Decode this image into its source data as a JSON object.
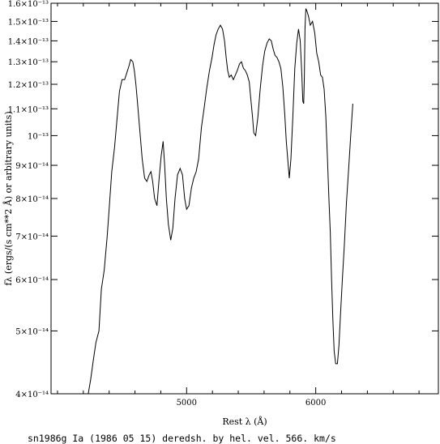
{
  "chart_data": {
    "type": "line",
    "title": "",
    "xlabel": "Rest λ (Å)",
    "ylabel": "fλ (ergs/(s cm**2 Å) or arbitrary units)",
    "caption": "sn1986g Ia (1986 05 15) deredsh. by hel. vel.   566. km/s",
    "xlim": [
      3950,
      6950
    ],
    "ylim": [
      4e-14,
      1.6e-13
    ],
    "yscale": "log",
    "grid": false,
    "x_ticks": [
      5000,
      6000
    ],
    "y_ticks": [
      {
        "value": 4e-14,
        "label": "4×10⁻¹⁴"
      },
      {
        "value": 5e-14,
        "label": "5×10⁻¹⁴"
      },
      {
        "value": 6e-14,
        "label": "6×10⁻¹⁴"
      },
      {
        "value": 7e-14,
        "label": "7×10⁻¹⁴"
      },
      {
        "value": 8e-14,
        "label": "8×10⁻¹⁴"
      },
      {
        "value": 9e-14,
        "label": "9×10⁻¹⁴"
      },
      {
        "value": 1e-13,
        "label": "10⁻¹³"
      },
      {
        "value": 1.1e-13,
        "label": "1.1×10⁻¹³"
      },
      {
        "value": 1.2e-13,
        "label": "1.2×10⁻¹³"
      },
      {
        "value": 1.3e-13,
        "label": "1.3×10⁻¹³"
      },
      {
        "value": 1.4e-13,
        "label": "1.4×10⁻¹³"
      },
      {
        "value": 1.5e-13,
        "label": "1.5×10⁻¹³"
      },
      {
        "value": 1.6e-13,
        "label": "1.6×10⁻¹³"
      }
    ],
    "series": [
      {
        "x": [
          4238,
          4256,
          4277,
          4298,
          4321,
          4340,
          4362,
          4385,
          4402,
          4420,
          4442,
          4461,
          4480,
          4500,
          4520,
          4537,
          4553,
          4567,
          4583,
          4595,
          4607,
          4620,
          4637,
          4656,
          4675,
          4692,
          4710,
          4724,
          4737,
          4752,
          4770,
          4787,
          4803,
          4818,
          4830,
          4843,
          4859,
          4877,
          4893,
          4910,
          4930,
          4950,
          4968,
          4985,
          5000,
          5018,
          5037,
          5055,
          5074,
          5093,
          5115,
          5135,
          5155,
          5177,
          5197,
          5212,
          5228,
          5245,
          5262,
          5278,
          5294,
          5306,
          5318,
          5331,
          5345,
          5362,
          5378,
          5392,
          5410,
          5425,
          5440,
          5455,
          5470,
          5485,
          5497,
          5510,
          5520,
          5535,
          5552,
          5570,
          5588,
          5605,
          5623,
          5640,
          5656,
          5670,
          5685,
          5700,
          5715,
          5730,
          5745,
          5760,
          5772,
          5785,
          5795,
          5808,
          5823,
          5838,
          5853,
          5867,
          5880,
          5892,
          5900,
          5907,
          5912,
          5917,
          5923,
          5930,
          5943,
          5958,
          5975,
          5992,
          6008,
          6023,
          6038,
          6052,
          6065,
          6078,
          6090,
          6102,
          6113,
          6123,
          6133,
          6143,
          6155,
          6168,
          6180,
          6192,
          6206,
          6222,
          6238,
          6255,
          6271,
          6287
        ],
        "y": [
          3.9e-14,
          4.2e-14,
          4.5e-14,
          4.8e-14,
          5e-14,
          5.8e-14,
          6.2e-14,
          7e-14,
          7.8e-14,
          8.8e-14,
          9.6e-14,
          1.06e-13,
          1.17e-13,
          1.22e-13,
          1.22e-13,
          1.25e-13,
          1.28e-13,
          1.31e-13,
          1.3e-13,
          1.26e-13,
          1.2e-13,
          1.12e-13,
          1.02e-13,
          9.2e-14,
          8.6e-14,
          8.5e-14,
          8.7e-14,
          8.8e-14,
          8.5e-14,
          8e-14,
          7.8e-14,
          8.6e-14,
          9.3e-14,
          9.8e-14,
          9e-14,
          8e-14,
          7.3e-14,
          6.9e-14,
          7.2e-14,
          8e-14,
          8.7e-14,
          8.9e-14,
          8.7e-14,
          8e-14,
          7.7e-14,
          7.8e-14,
          8.3e-14,
          8.6e-14,
          8.8e-14,
          9.2e-14,
          1.03e-13,
          1.1e-13,
          1.18e-13,
          1.26e-13,
          1.32e-13,
          1.38e-13,
          1.43e-13,
          1.46e-13,
          1.48e-13,
          1.46e-13,
          1.4e-13,
          1.32e-13,
          1.26e-13,
          1.23e-13,
          1.24e-13,
          1.22e-13,
          1.24e-13,
          1.26e-13,
          1.29e-13,
          1.3e-13,
          1.27e-13,
          1.26e-13,
          1.24e-13,
          1.21e-13,
          1.14e-13,
          1.07e-13,
          1.01e-13,
          1e-13,
          1.07e-13,
          1.18e-13,
          1.28e-13,
          1.35e-13,
          1.39e-13,
          1.41e-13,
          1.4e-13,
          1.36e-13,
          1.33e-13,
          1.32e-13,
          1.3e-13,
          1.27e-13,
          1.19e-13,
          1.08e-13,
          9.8e-14,
          9.1e-14,
          8.6e-14,
          9.2e-14,
          1.07e-13,
          1.27e-13,
          1.39e-13,
          1.46e-13,
          1.4e-13,
          1.25e-13,
          1.13e-13,
          1.12e-13,
          1.23e-13,
          1.46e-13,
          1.57e-13,
          1.56e-13,
          1.53e-13,
          1.48e-13,
          1.5e-13,
          1.44e-13,
          1.34e-13,
          1.3e-13,
          1.24e-13,
          1.23e-13,
          1.18e-13,
          1.07e-13,
          9.3e-14,
          8e-14,
          7.1e-14,
          6e-14,
          5.2e-14,
          4.65e-14,
          4.45e-14,
          4.45e-14,
          4.75e-14,
          5.3e-14,
          6e-14,
          6.8e-14,
          7.9e-14,
          8.9e-14,
          1e-13,
          1.12e-13
        ]
      }
    ]
  }
}
